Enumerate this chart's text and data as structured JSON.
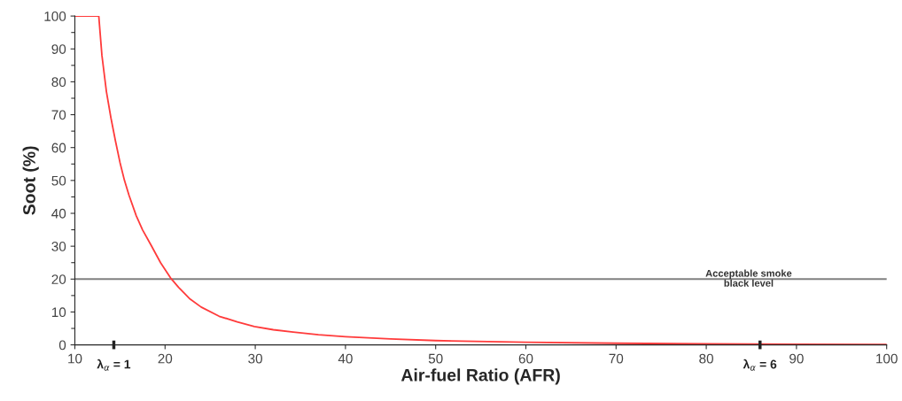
{
  "chart_data": {
    "type": "line",
    "xlabel": "Air-fuel Ratio (AFR)",
    "ylabel": "Soot (%)",
    "series": [
      {
        "color": "#ff3b3b",
        "x": [
          10,
          12.65,
          13.0,
          13.5,
          14.0,
          14.5,
          15.0,
          15.5,
          16.0,
          16.8,
          17.5,
          18.45,
          19.5,
          20.6,
          21.5,
          22.7,
          24,
          26,
          28,
          29.9,
          32,
          34.2,
          37,
          40,
          45,
          50,
          60,
          70,
          80,
          90,
          100
        ],
        "values": [
          100,
          100,
          88,
          77,
          69,
          62,
          55.5,
          50,
          45.5,
          39.3,
          35,
          30.3,
          25,
          20.4,
          17.5,
          14.1,
          11.5,
          8.7,
          7,
          5.6,
          4.6,
          3.9,
          3.1,
          2.5,
          1.8,
          1.3,
          0.8,
          0.5,
          0.3,
          0.2,
          0.1
        ]
      }
    ],
    "xlim": [
      10,
      100
    ],
    "ylim": [
      0,
      100
    ],
    "xticks": [
      10,
      20,
      30,
      40,
      50,
      60,
      70,
      80,
      90,
      100
    ],
    "annotations": [
      "λ$_{α}$ = 1",
      "λ$_{α}$ = 6"
    ],
    "yticks": [
      0,
      10,
      20,
      30,
      40,
      50,
      60,
      70,
      80,
      90,
      100,
      {
        "value": 5,
        "label": null
      },
      {
        "value": 15,
        "label": null
      },
      {
        "value": 25,
        "label": null
      },
      {
        "value": 35,
        "label": null
      },
      {
        "value": 45,
        "label": null
      },
      {
        "value": 55,
        "label": null
      },
      {
        "value": 65,
        "label": null
      },
      {
        "value": 75,
        "label": null
      },
      {
        "value": 85,
        "label": null
      },
      {
        "value": 95,
        "label": null
      }
    ],
    "ref_lines": [
      {
        "axis": "y",
        "value": 20,
        "label": "Acceptable smoke\nblack level",
        "color": "#808080"
      }
    ],
    "grid": false,
    "legend": false,
    "marker": "none",
    "line_style": "solid"
  }
}
